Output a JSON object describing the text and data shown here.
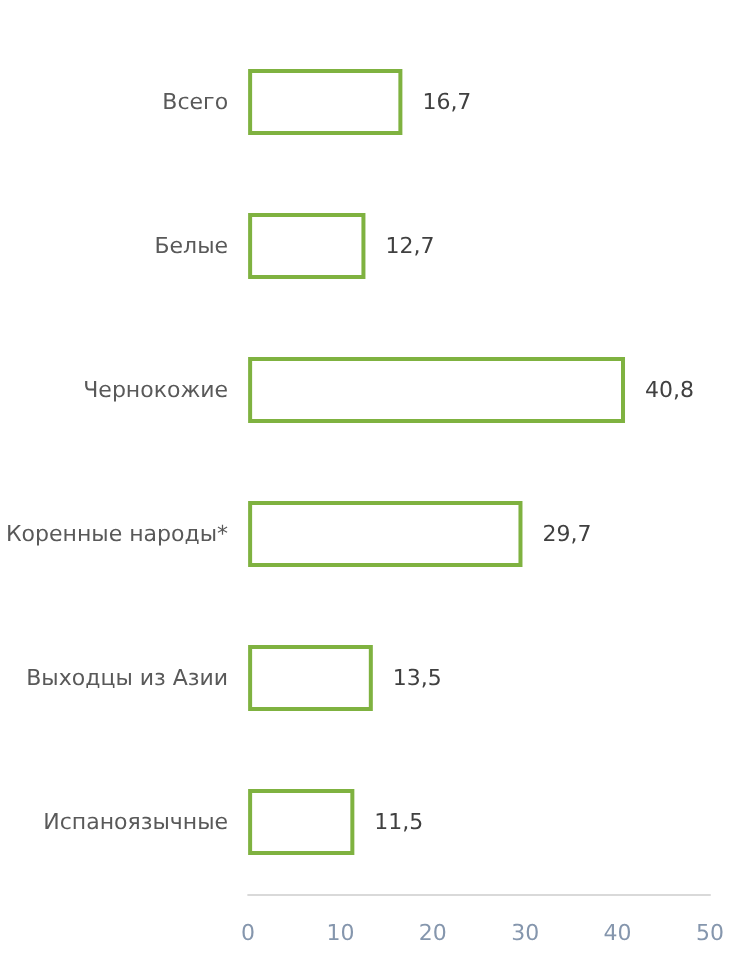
{
  "chart_data": {
    "type": "bar",
    "orientation": "horizontal",
    "categories": [
      "Всего",
      "Белые",
      "Чернокожие",
      "Коренные народы*",
      "Выходцы из Азии",
      "Испаноязычные"
    ],
    "values": [
      16.7,
      12.7,
      40.8,
      29.7,
      13.5,
      11.5
    ],
    "value_labels": [
      "16,7",
      "12,7",
      "40,8",
      "29,7",
      "13,5",
      "11,5"
    ],
    "color": "#7fb240",
    "xlim": [
      0,
      50
    ],
    "xticks": [
      0,
      10,
      20,
      30,
      40,
      50
    ]
  }
}
